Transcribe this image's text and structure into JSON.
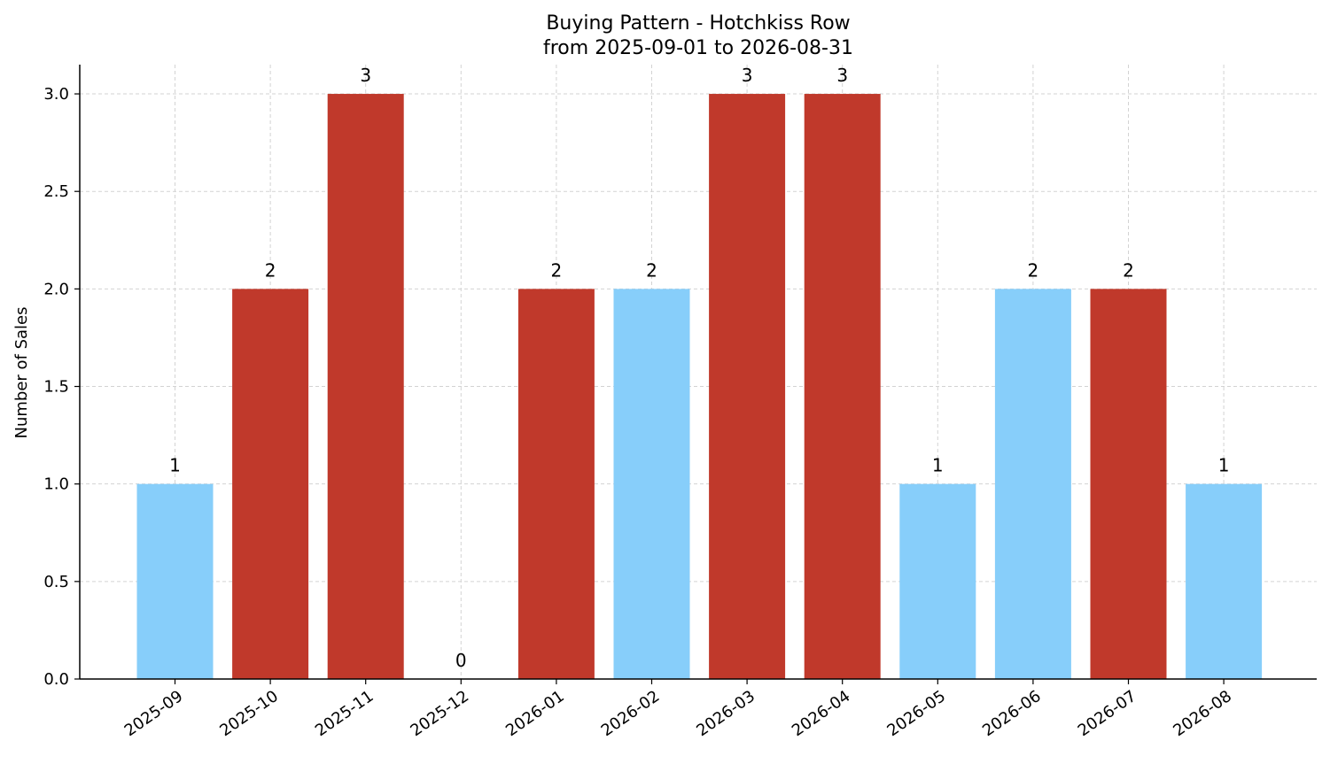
{
  "chart_data": {
    "type": "bar",
    "title": "Buying Pattern - Hotchkiss Row",
    "subtitle": "from 2025-09-01 to 2026-08-31",
    "xlabel": "",
    "ylabel": "Number of Sales",
    "categories": [
      "2025-09",
      "2025-10",
      "2025-11",
      "2025-12",
      "2026-01",
      "2026-02",
      "2026-03",
      "2026-04",
      "2026-05",
      "2026-06",
      "2026-07",
      "2026-08"
    ],
    "values": [
      1,
      2,
      3,
      0,
      2,
      2,
      3,
      3,
      1,
      2,
      2,
      1
    ],
    "bar_colors": [
      "#87CEFA",
      "#C0392B",
      "#C0392B",
      "#C0392B",
      "#C0392B",
      "#87CEFA",
      "#C0392B",
      "#C0392B",
      "#87CEFA",
      "#87CEFA",
      "#C0392B",
      "#87CEFA"
    ],
    "data_labels": [
      "1",
      "2",
      "3",
      "0",
      "2",
      "2",
      "3",
      "3",
      "1",
      "2",
      "2",
      "1"
    ],
    "yticks": [
      "0.0",
      "0.5",
      "1.0",
      "1.5",
      "2.0",
      "2.5",
      "3.0"
    ],
    "ylim": [
      0,
      3.15
    ],
    "grid": true,
    "legend": false
  }
}
